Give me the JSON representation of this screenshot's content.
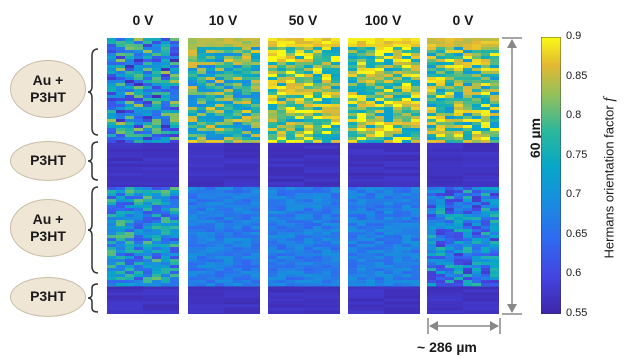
{
  "voltages": [
    "0 V",
    "10 V",
    "50 V",
    "100 V",
    "0 V"
  ],
  "layers": [
    {
      "lines": [
        "Au +",
        "P3HT"
      ]
    },
    {
      "lines": [
        "P3HT"
      ]
    },
    {
      "lines": [
        "Au +",
        "P3HT"
      ]
    },
    {
      "lines": [
        "P3HT"
      ]
    }
  ],
  "scale_height": "60 µm",
  "scale_width": "~ 286 µm",
  "colorbar": {
    "title": "Hermans orientation factor",
    "symbol": "f",
    "ticks": [
      "0.9",
      "0.85",
      "0.8",
      "0.75",
      "0.7",
      "0.65",
      "0.6",
      "0.55"
    ],
    "range": [
      0.55,
      0.9
    ]
  },
  "chart_data": {
    "type": "heatmap",
    "columns": [
      "0 V",
      "10 V",
      "50 V",
      "100 V",
      "0 V"
    ],
    "value_label": "Hermans orientation factor f",
    "value_range": [
      0.55,
      0.9
    ],
    "band_order_top_to_bottom": [
      "Au + P3HT",
      "P3HT",
      "Au + P3HT",
      "P3HT"
    ],
    "typical_band_values": [
      [
        0.7,
        0.57,
        0.71,
        0.57
      ],
      [
        0.78,
        0.57,
        0.67,
        0.57
      ],
      [
        0.82,
        0.57,
        0.67,
        0.57
      ],
      [
        0.82,
        0.57,
        0.67,
        0.57
      ],
      [
        0.8,
        0.57,
        0.68,
        0.57
      ]
    ]
  }
}
